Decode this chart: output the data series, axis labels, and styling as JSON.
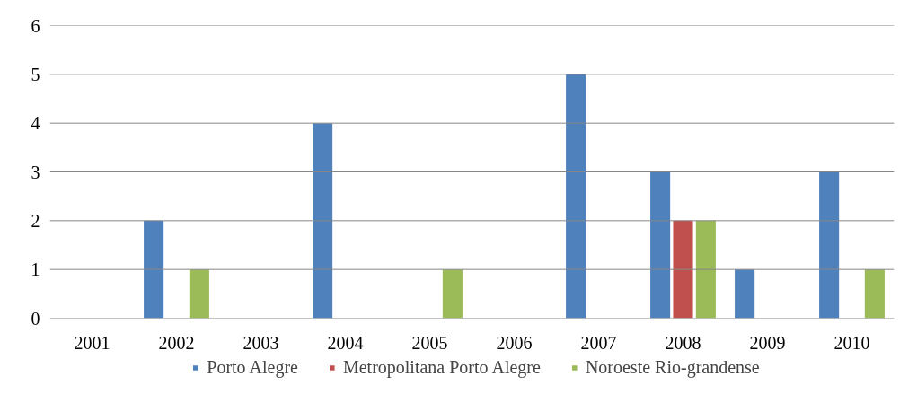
{
  "chart_data": {
    "type": "bar",
    "categories": [
      "2001",
      "2002",
      "2003",
      "2004",
      "2005",
      "2006",
      "2007",
      "2008",
      "2009",
      "2010"
    ],
    "series": [
      {
        "name": "Porto Alegre",
        "color": "#4f81bd",
        "values": [
          0,
          2,
          0,
          4,
          0,
          0,
          5,
          3,
          1,
          3
        ]
      },
      {
        "name": "Metropolitana Porto Alegre",
        "color": "#c0504d",
        "values": [
          0,
          0,
          0,
          0,
          0,
          0,
          0,
          2,
          0,
          0
        ]
      },
      {
        "name": "Noroeste Rio-grandense",
        "color": "#9bbb59",
        "values": [
          0,
          1,
          0,
          0,
          1,
          0,
          0,
          2,
          0,
          1
        ]
      }
    ],
    "ylim": [
      0,
      6
    ],
    "yticks": [
      0,
      1,
      2,
      3,
      4,
      5,
      6
    ],
    "grid": "y",
    "legend": "bottom"
  }
}
